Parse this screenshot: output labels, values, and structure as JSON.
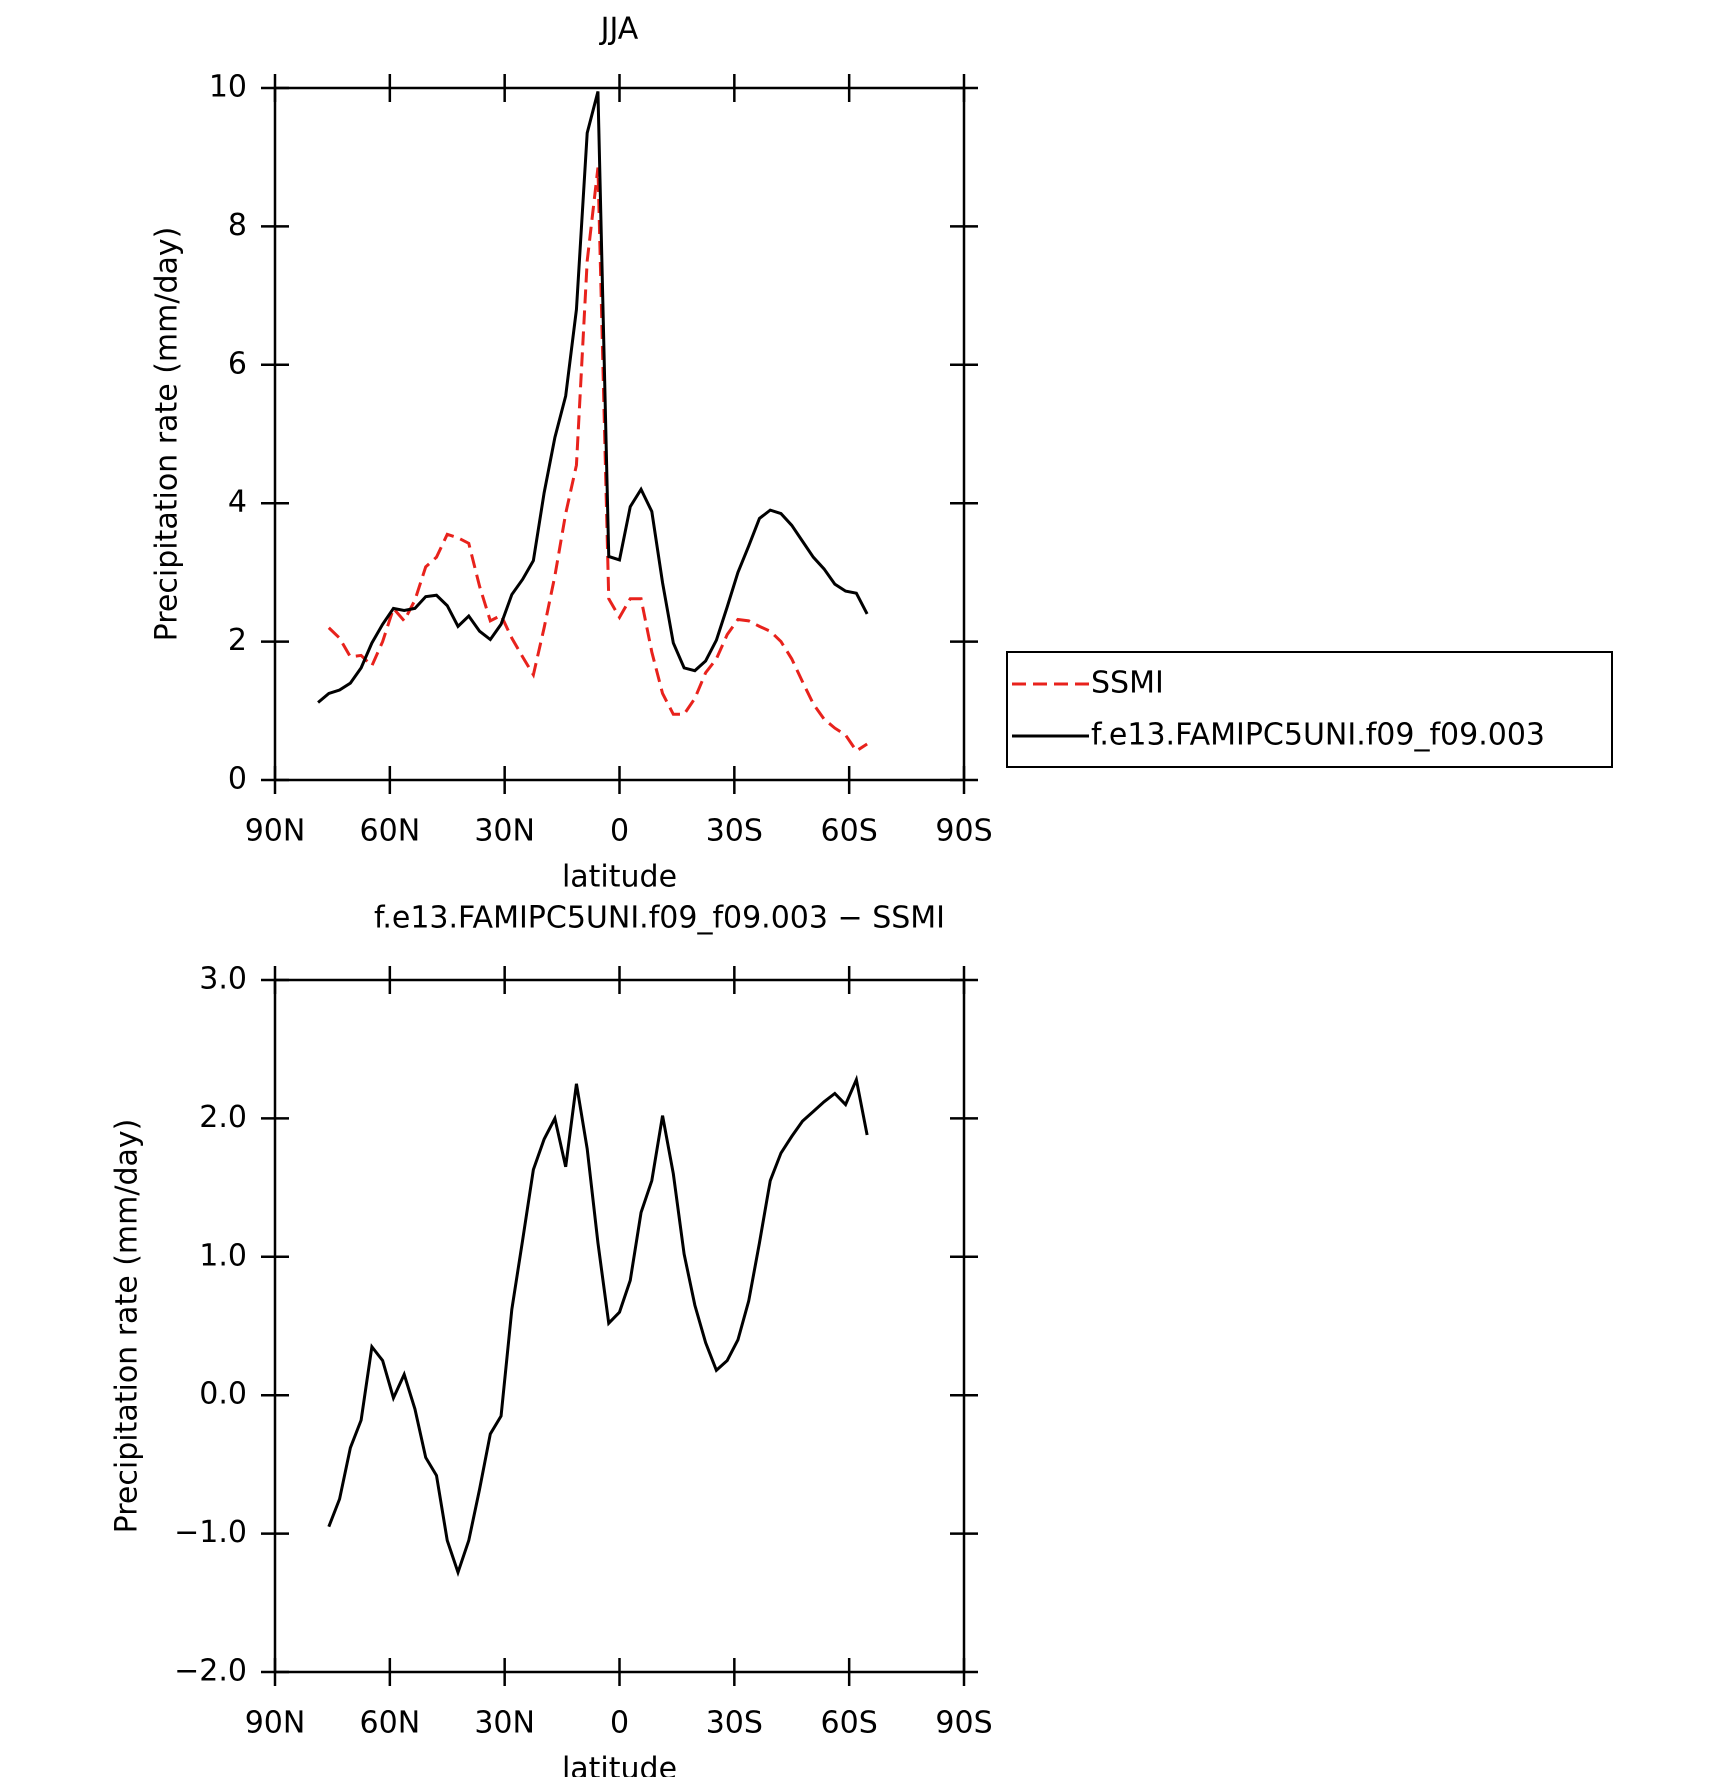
{
  "chart_data": [
    {
      "type": "line",
      "title": "JJA",
      "xlabel": "latitude",
      "ylabel": "Precipitation rate (mm/day)",
      "x": [
        78.75,
        75.94,
        73.13,
        70.31,
        67.5,
        64.69,
        61.88,
        59.06,
        56.25,
        53.44,
        50.63,
        47.81,
        45,
        42.19,
        39.38,
        36.56,
        33.75,
        30.94,
        28.13,
        25.31,
        22.5,
        19.69,
        16.88,
        14.06,
        11.25,
        8.44,
        5.63,
        2.81,
        0,
        -2.81,
        -5.63,
        -8.44,
        -11.25,
        -14.06,
        -16.88,
        -19.69,
        -22.5,
        -25.31,
        -28.13,
        -30.94,
        -33.75,
        -36.56,
        -39.38,
        -42.19,
        -45,
        -47.81,
        -50.63,
        -53.44,
        -56.25,
        -59.06,
        -61.88,
        -64.69
      ],
      "xlim": [
        90,
        -90
      ],
      "xticks": [
        {
          "value": 90,
          "label": "90N"
        },
        {
          "value": 60,
          "label": "60N"
        },
        {
          "value": 30,
          "label": "30N"
        },
        0,
        {
          "value": -30,
          "label": "30S"
        },
        {
          "value": -60,
          "label": "60S"
        },
        {
          "value": -90,
          "label": "90S"
        }
      ],
      "ylim": [
        0,
        10
      ],
      "yticks": [
        0,
        2,
        4,
        6,
        8,
        10
      ],
      "legend": "right",
      "series": [
        {
          "name": "SSMI",
          "color": "#e8221c",
          "style": "dashed",
          "values": [
            null,
            2.2,
            2.05,
            1.78,
            1.8,
            1.65,
            2.0,
            2.48,
            2.3,
            2.6,
            3.08,
            3.22,
            3.55,
            3.5,
            3.42,
            2.8,
            2.3,
            2.38,
            2.05,
            1.78,
            1.52,
            2.2,
            2.95,
            3.85,
            4.55,
            7.5,
            8.85,
            2.62,
            2.35,
            2.62,
            2.62,
            1.85,
            1.25,
            0.95,
            0.95,
            1.18,
            1.55,
            1.75,
            2.1,
            2.32,
            2.3,
            2.22,
            2.15,
            2.0,
            1.75,
            1.42,
            1.1,
            0.88,
            0.75,
            0.65,
            0.42,
            0.52
          ]
        },
        {
          "name": "f.e13.FAMIPC5UNI.f09_f09.003",
          "color": "#000000",
          "style": "solid",
          "values": [
            1.12,
            1.25,
            1.3,
            1.4,
            1.62,
            1.98,
            2.25,
            2.48,
            2.45,
            2.48,
            2.65,
            2.67,
            2.52,
            2.22,
            2.37,
            2.15,
            2.03,
            2.25,
            2.68,
            2.9,
            3.17,
            4.15,
            4.95,
            5.55,
            6.8,
            9.35,
            9.95,
            3.23,
            3.18,
            3.95,
            4.2,
            3.88,
            2.85,
            1.98,
            1.62,
            1.58,
            1.72,
            2.02,
            2.5,
            3.0,
            3.38,
            3.78,
            3.9,
            3.85,
            3.68,
            3.45,
            3.22,
            3.05,
            2.83,
            2.73,
            2.7,
            2.4
          ]
        }
      ]
    },
    {
      "type": "line",
      "title": "f.e13.FAMIPC5UNI.f09_f09.003 − SSMI",
      "xlabel": "latitude",
      "ylabel": "Precipitation rate (mm/day)",
      "x": [
        78.75,
        75.94,
        73.13,
        70.31,
        67.5,
        64.69,
        61.88,
        59.06,
        56.25,
        53.44,
        50.63,
        47.81,
        45,
        42.19,
        39.38,
        36.56,
        33.75,
        30.94,
        28.13,
        25.31,
        22.5,
        19.69,
        16.88,
        14.06,
        11.25,
        8.44,
        5.63,
        2.81,
        0,
        -2.81,
        -5.63,
        -8.44,
        -11.25,
        -14.06,
        -16.88,
        -19.69,
        -22.5,
        -25.31,
        -28.13,
        -30.94,
        -33.75,
        -36.56,
        -39.38,
        -42.19,
        -45,
        -47.81,
        -50.63,
        -53.44,
        -56.25,
        -59.06,
        -61.88,
        -64.69
      ],
      "xlim": [
        90,
        -90
      ],
      "xticks": [
        {
          "value": 90,
          "label": "90N"
        },
        {
          "value": 60,
          "label": "60N"
        },
        {
          "value": 30,
          "label": "30N"
        },
        0,
        {
          "value": -30,
          "label": "30S"
        },
        {
          "value": -60,
          "label": "60S"
        },
        {
          "value": -90,
          "label": "90S"
        }
      ],
      "ylim": [
        -2,
        3
      ],
      "yticks": [
        {
          "value": -2,
          "label": "−2.0"
        },
        {
          "value": -1,
          "label": "−1.0"
        },
        {
          "value": 0,
          "label": "0.0"
        },
        {
          "value": 1,
          "label": "1.0"
        },
        {
          "value": 2,
          "label": "2.0"
        },
        {
          "value": 3,
          "label": "3.0"
        }
      ],
      "series": [
        {
          "color": "#000000",
          "style": "solid",
          "values": [
            null,
            -0.95,
            -0.75,
            -0.38,
            -0.18,
            0.35,
            0.25,
            -0.02,
            0.15,
            -0.1,
            -0.45,
            -0.58,
            -1.05,
            -1.28,
            -1.05,
            -0.68,
            -0.28,
            -0.15,
            0.62,
            1.12,
            1.63,
            1.85,
            2.0,
            1.65,
            2.25,
            1.78,
            1.1,
            0.52,
            0.6,
            0.83,
            1.32,
            1.55,
            2.02,
            1.6,
            1.02,
            0.65,
            0.38,
            0.18,
            0.25,
            0.4,
            0.68,
            1.1,
            1.55,
            1.75,
            1.87,
            1.98,
            2.05,
            2.12,
            2.18,
            2.1,
            2.28,
            1.88
          ]
        }
      ]
    }
  ]
}
